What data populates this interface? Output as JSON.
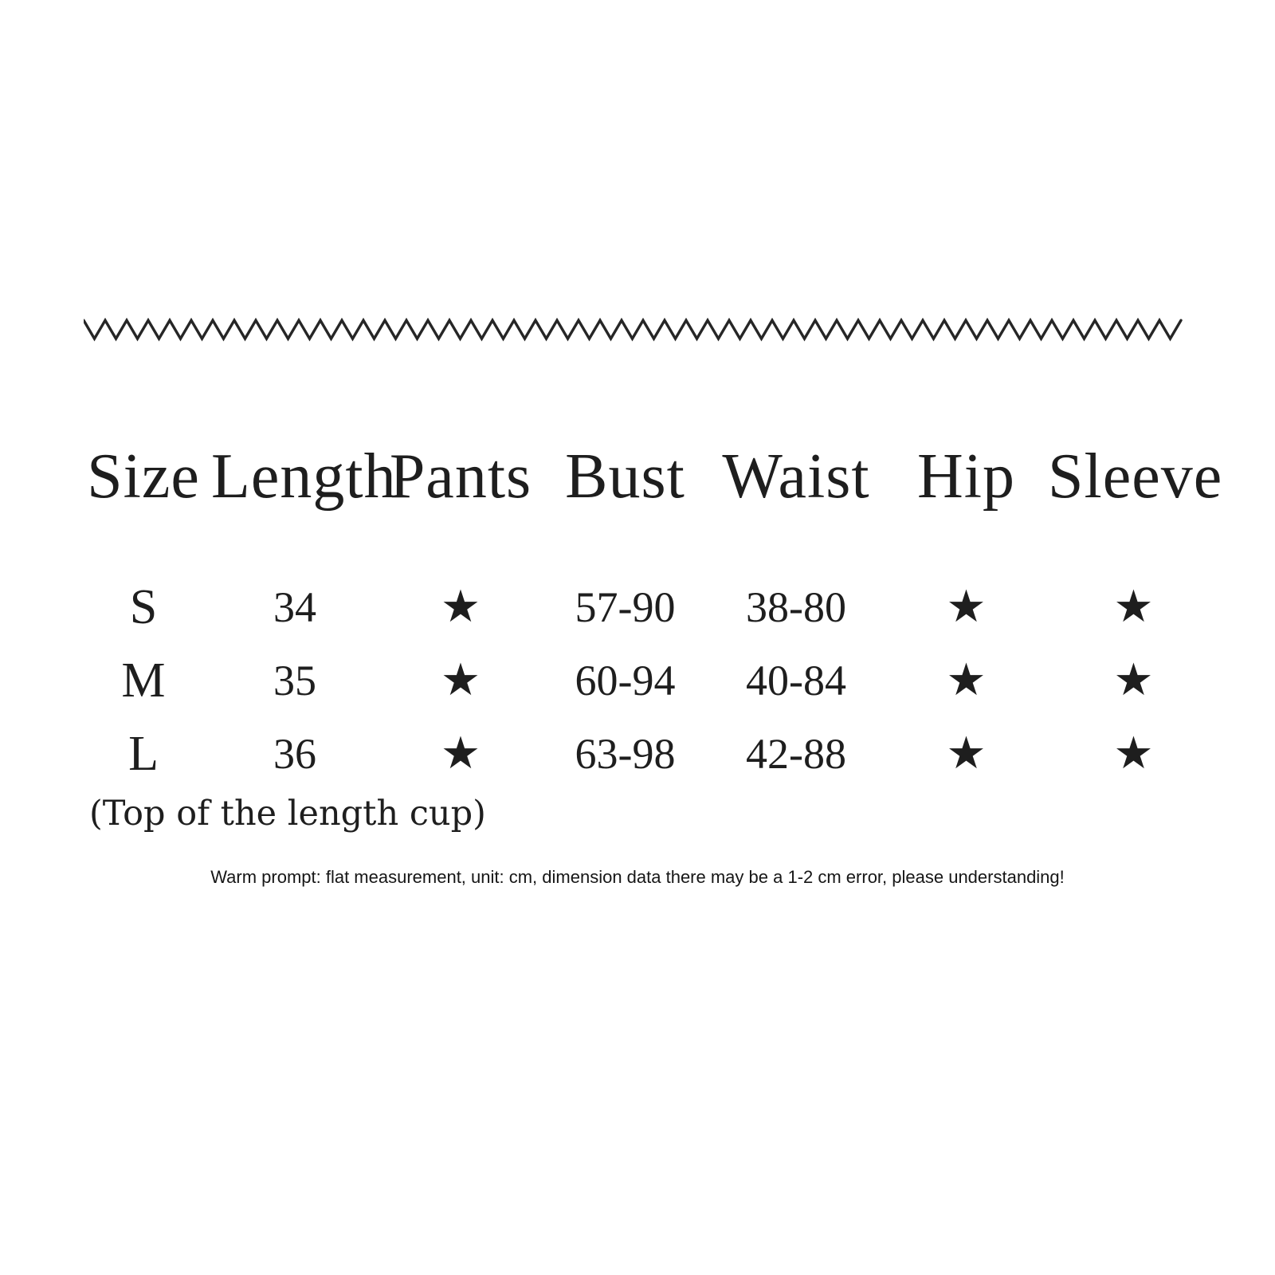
{
  "colors": {
    "background": "#ffffff",
    "text": "#1e1e1e",
    "divider": "#262626"
  },
  "divider": {
    "style": "zigzag-line"
  },
  "table": {
    "columns": [
      "Size",
      "Length",
      "Pants",
      "Bust",
      "Waist",
      "Hip",
      "Sleeve"
    ],
    "rows": [
      {
        "cells": [
          "S",
          "34",
          "★",
          "57-90",
          "38-80",
          "★",
          "★"
        ]
      },
      {
        "cells": [
          "M",
          "35",
          "★",
          "60-94",
          "40-84",
          "★",
          "★"
        ]
      },
      {
        "cells": [
          "L",
          "36",
          "★",
          "63-98",
          "42-88",
          "★",
          "★"
        ]
      }
    ]
  },
  "notes": {
    "length_note": "(Top of the length cup)",
    "warm_prompt": "Warm prompt: flat measurement, unit: cm, dimension data there may be a 1-2 cm error, please understanding!"
  },
  "chart_data": {
    "type": "table",
    "title": "",
    "columns": [
      "Size",
      "Length",
      "Pants",
      "Bust",
      "Waist",
      "Hip",
      "Sleeve"
    ],
    "rows": [
      [
        "S",
        "34",
        "★",
        "57-90",
        "38-80",
        "★",
        "★"
      ],
      [
        "M",
        "35",
        "★",
        "60-94",
        "40-84",
        "★",
        "★"
      ],
      [
        "L",
        "36",
        "★",
        "63-98",
        "42-88",
        "★",
        "★"
      ]
    ],
    "annotations": [
      "(Top of the length cup)",
      "Warm prompt: flat measurement, unit: cm, dimension data there may be a 1-2 cm error, please understanding!"
    ]
  }
}
